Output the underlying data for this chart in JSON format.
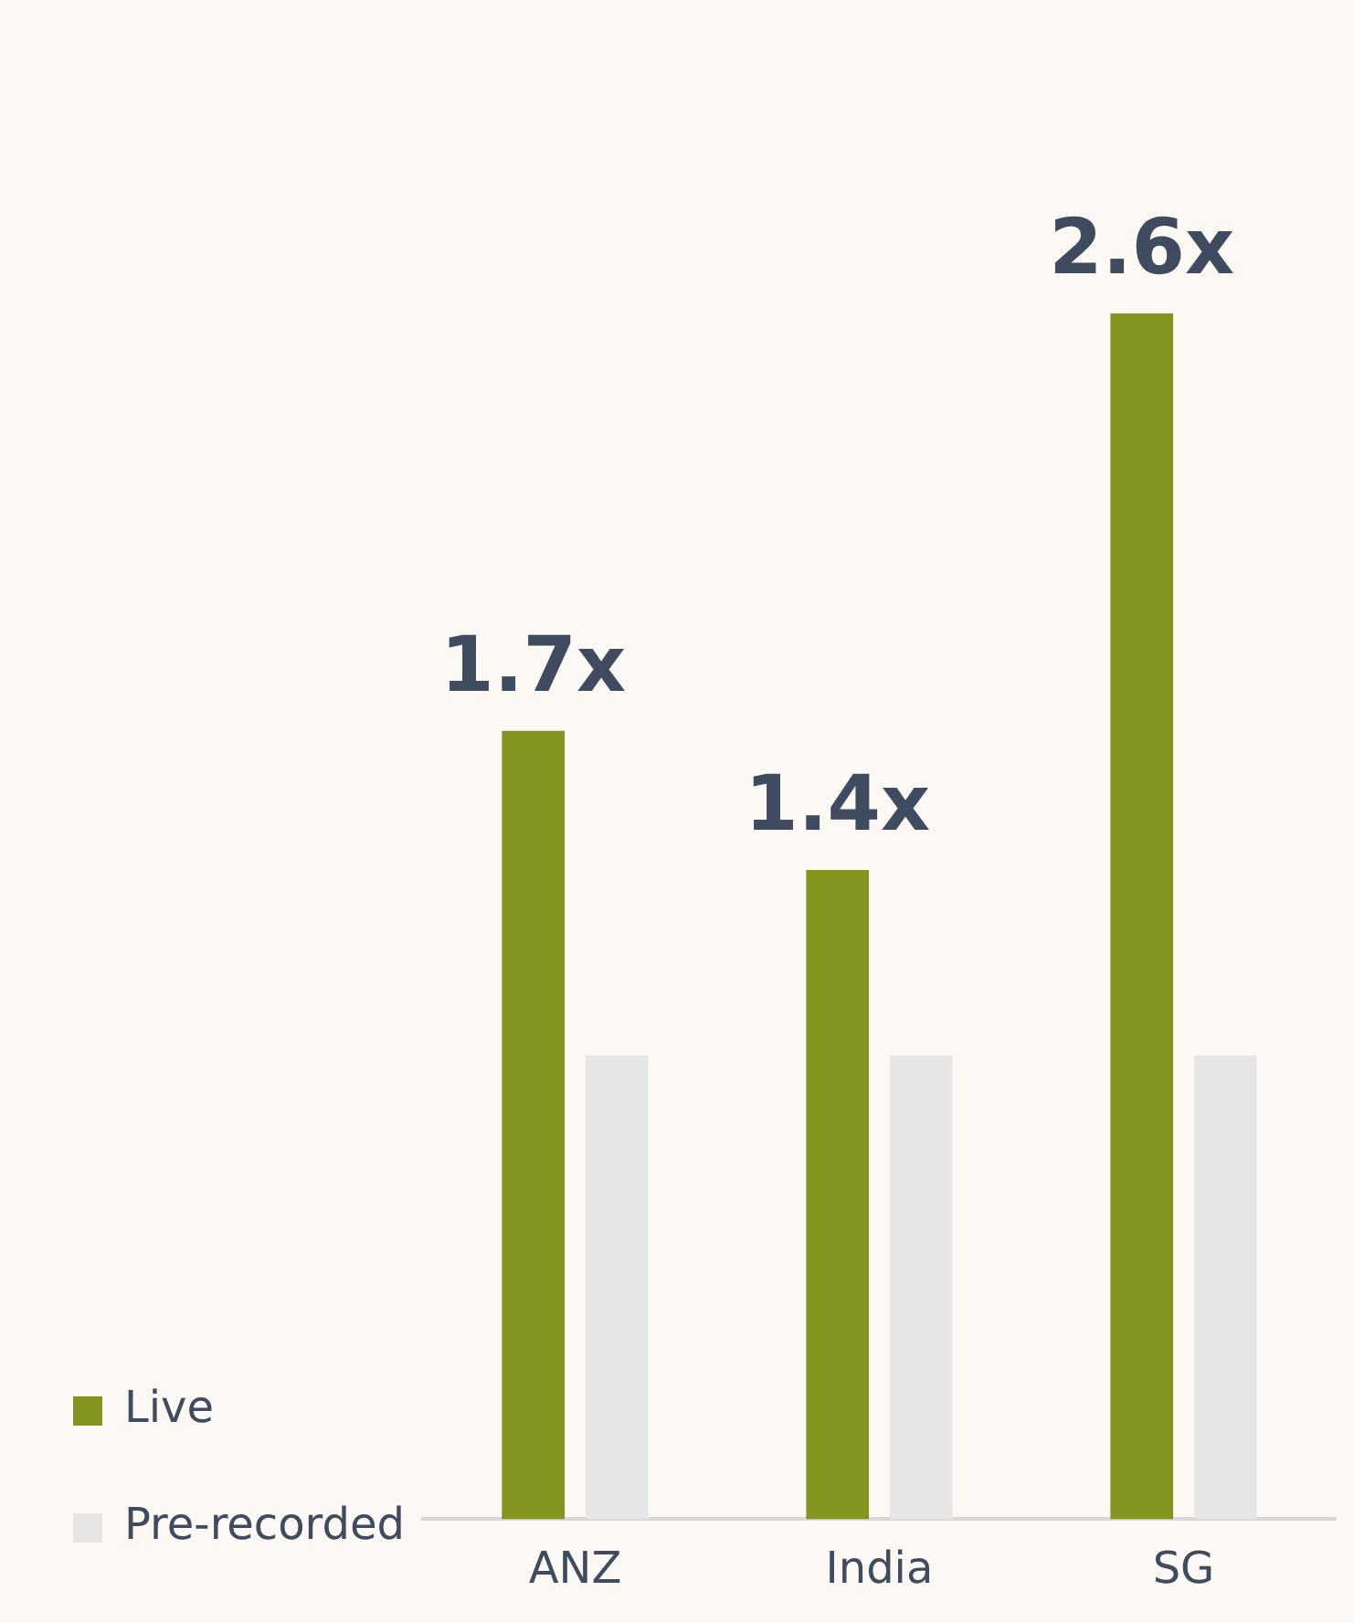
{
  "chart_data": {
    "type": "bar",
    "categories": [
      "ANZ",
      "India",
      "SG"
    ],
    "series": [
      {
        "name": "Live",
        "color": "#84951f",
        "values": [
          1.7,
          1.4,
          2.6
        ],
        "value_labels": [
          "1.7x",
          "1.4x",
          "2.6x"
        ]
      },
      {
        "name": "Pre-recorded",
        "color": "#e6e6e6",
        "values": [
          1,
          1,
          1
        ]
      }
    ],
    "legend": "bottom left",
    "grid": false,
    "tick_labels": "x"
  }
}
